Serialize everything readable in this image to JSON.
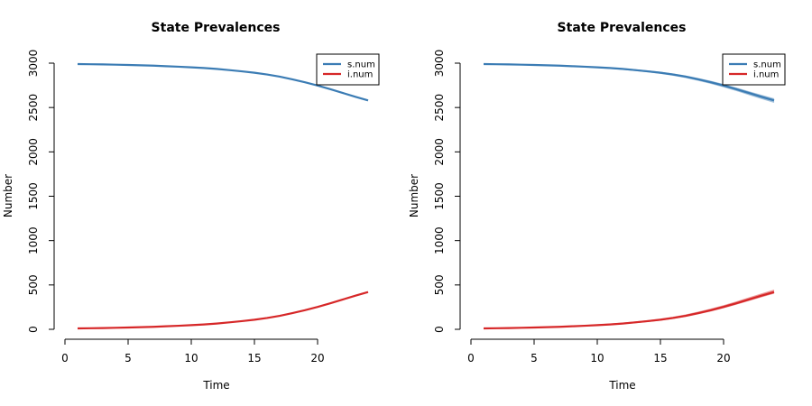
{
  "chart_data": [
    {
      "type": "line",
      "title": "State Prevalences",
      "xlabel": "Time",
      "ylabel": "Number",
      "xlim": [
        0,
        24
      ],
      "ylim": [
        0,
        3000
      ],
      "xticks": [
        0,
        5,
        10,
        15,
        20
      ],
      "yticks": [
        0,
        500,
        1000,
        1500,
        2000,
        2500,
        3000
      ],
      "legend_position": "top-right",
      "x": [
        1,
        2,
        3,
        4,
        5,
        6,
        7,
        8,
        9,
        10,
        11,
        12,
        13,
        14,
        15,
        16,
        17,
        18,
        19,
        20,
        21,
        22,
        23,
        24
      ],
      "series": [
        {
          "name": "s.num",
          "color": "#3b7cb4",
          "values": [
            2990,
            2988,
            2986,
            2983,
            2980,
            2976,
            2972,
            2966,
            2960,
            2953,
            2945,
            2935,
            2922,
            2908,
            2892,
            2872,
            2848,
            2818,
            2785,
            2748,
            2707,
            2664,
            2621,
            2580
          ]
        },
        {
          "name": "i.num",
          "color": "#d62728",
          "values": [
            10,
            12,
            14,
            17,
            20,
            24,
            28,
            34,
            40,
            47,
            55,
            65,
            78,
            92,
            108,
            128,
            152,
            182,
            215,
            252,
            293,
            336,
            379,
            420
          ]
        }
      ],
      "replicates": false
    },
    {
      "type": "line",
      "title": "State Prevalences",
      "xlabel": "Time",
      "ylabel": "Number",
      "xlim": [
        0,
        24
      ],
      "ylim": [
        0,
        3000
      ],
      "xticks": [
        0,
        5,
        10,
        15,
        20
      ],
      "yticks": [
        0,
        500,
        1000,
        1500,
        2000,
        2500,
        3000
      ],
      "legend_position": "top-right",
      "x": [
        1,
        2,
        3,
        4,
        5,
        6,
        7,
        8,
        9,
        10,
        11,
        12,
        13,
        14,
        15,
        16,
        17,
        18,
        19,
        20,
        21,
        22,
        23,
        24
      ],
      "series": [
        {
          "name": "s.num",
          "color": "#3b7cb4",
          "values": [
            2990,
            2988,
            2986,
            2983,
            2980,
            2976,
            2972,
            2966,
            2960,
            2953,
            2945,
            2935,
            2922,
            2908,
            2892,
            2872,
            2848,
            2818,
            2785,
            2748,
            2707,
            2664,
            2621,
            2580
          ]
        },
        {
          "name": "i.num",
          "color": "#d62728",
          "values": [
            10,
            12,
            14,
            17,
            20,
            24,
            28,
            34,
            40,
            47,
            55,
            65,
            78,
            92,
            108,
            128,
            152,
            182,
            215,
            252,
            293,
            336,
            379,
            420
          ]
        }
      ],
      "replicates": true
    }
  ]
}
